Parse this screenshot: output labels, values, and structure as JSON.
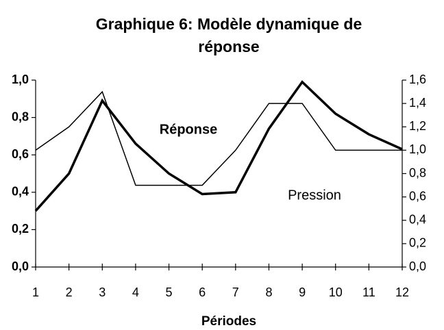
{
  "chart_data": {
    "type": "line",
    "title": "Graphique 6: Modèle dynamique de réponse",
    "x_label": "Périodes",
    "categories": [
      "1",
      "2",
      "3",
      "4",
      "5",
      "6",
      "7",
      "8",
      "9",
      "10",
      "11",
      "12"
    ],
    "series": [
      {
        "name": "Réponse",
        "color": "#000000",
        "axis": "y",
        "values": [
          0.3,
          0.5,
          0.89,
          0.66,
          0.5,
          0.39,
          0.4,
          0.74,
          0.99,
          0.82,
          0.71,
          0.63
        ]
      },
      {
        "name": "Pression",
        "color": "#000000",
        "axis": "y2",
        "values": [
          1.0,
          1.2,
          1.5,
          0.7,
          0.7,
          0.7,
          1.0,
          1.4,
          1.4,
          1.0,
          1.0,
          1.0
        ]
      }
    ],
    "ylim": [
      0,
      1
    ],
    "yticks": [
      {
        "value": 0,
        "label": "0,0"
      },
      {
        "value": 0.2,
        "label": "0,2"
      },
      {
        "value": 0.4,
        "label": "0,4"
      },
      {
        "value": 0.6,
        "label": "0,6"
      },
      {
        "value": 0.8,
        "label": "0,8"
      },
      {
        "value": 1,
        "label": "1,0"
      }
    ],
    "y2lim": [
      0,
      1.6
    ],
    "y2ticks": [
      {
        "value": 0,
        "label": "0,0"
      },
      {
        "value": 0.2,
        "label": "0,2"
      },
      {
        "value": 0.4,
        "label": "0,4"
      },
      {
        "value": 0.6,
        "label": "0,6"
      },
      {
        "value": 0.8,
        "label": "0,8"
      },
      {
        "value": 1,
        "label": "1,0"
      },
      {
        "value": 1.2,
        "label": "1,2"
      },
      {
        "value": 1.4,
        "label": "1,4"
      },
      {
        "value": 1.6,
        "label": "1,6"
      }
    ],
    "grid": false
  }
}
